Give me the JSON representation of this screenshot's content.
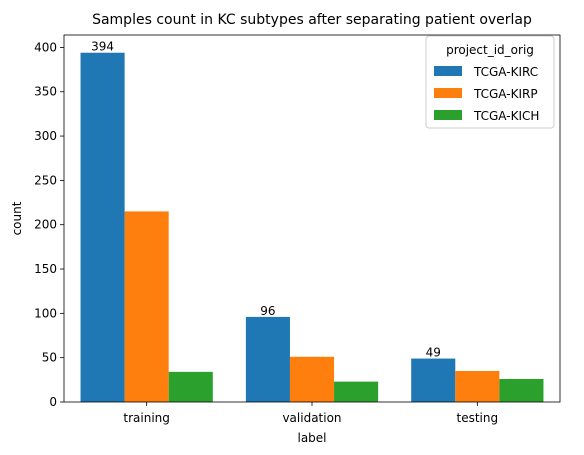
{
  "chart_data": {
    "type": "bar",
    "title": "Samples count in KC subtypes after separating patient overlap",
    "xlabel": "label",
    "ylabel": "count",
    "categories": [
      "training",
      "validation",
      "testing"
    ],
    "series": [
      {
        "name": "TCGA-KIRC",
        "values": [
          394,
          96,
          49
        ],
        "color": "#1f77b4"
      },
      {
        "name": "TCGA-KIRP",
        "values": [
          215,
          51,
          35
        ],
        "color": "#ff7f0e"
      },
      {
        "name": "TCGA-KICH",
        "values": [
          34,
          23,
          26
        ],
        "color": "#2ca02c"
      }
    ],
    "data_labels": [
      {
        "series": 0,
        "category": 0,
        "text": "394"
      },
      {
        "series": 0,
        "category": 1,
        "text": "96"
      },
      {
        "series": 0,
        "category": 2,
        "text": "49"
      }
    ],
    "ylim": [
      0,
      414
    ],
    "yticks": [
      0,
      50,
      100,
      150,
      200,
      250,
      300,
      350,
      400
    ],
    "grid": false,
    "legend": {
      "title": "project_id_orig",
      "placement": "top-right"
    }
  }
}
